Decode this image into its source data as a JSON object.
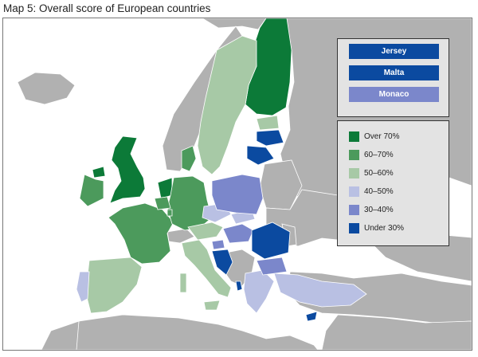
{
  "title": "Map 5: Overall score of European countries",
  "colors": {
    "over70": "#0c7a38",
    "s60_70": "#4c9a5c",
    "s50_60": "#a7c9a6",
    "s40_50": "#b9c0e3",
    "s30_40": "#7b87cb",
    "under30": "#0b4aa0",
    "non_eu": "#b1b1b1",
    "sea": "#ffffff"
  },
  "small_states": [
    {
      "label": "Jersey",
      "color": "#0b4aa0"
    },
    {
      "label": "Malta",
      "color": "#0b4aa0"
    },
    {
      "label": "Monaco",
      "color": "#7b87cb"
    }
  ],
  "legend": [
    {
      "label": "Over 70%",
      "color": "#0c7a38"
    },
    {
      "label": "60–70%",
      "color": "#4c9a5c"
    },
    {
      "label": "50–60%",
      "color": "#a7c9a6"
    },
    {
      "label": "40–50%",
      "color": "#b9c0e3"
    },
    {
      "label": "30–40%",
      "color": "#7b87cb"
    },
    {
      "label": "Under 30%",
      "color": "#0b4aa0"
    }
  ]
}
